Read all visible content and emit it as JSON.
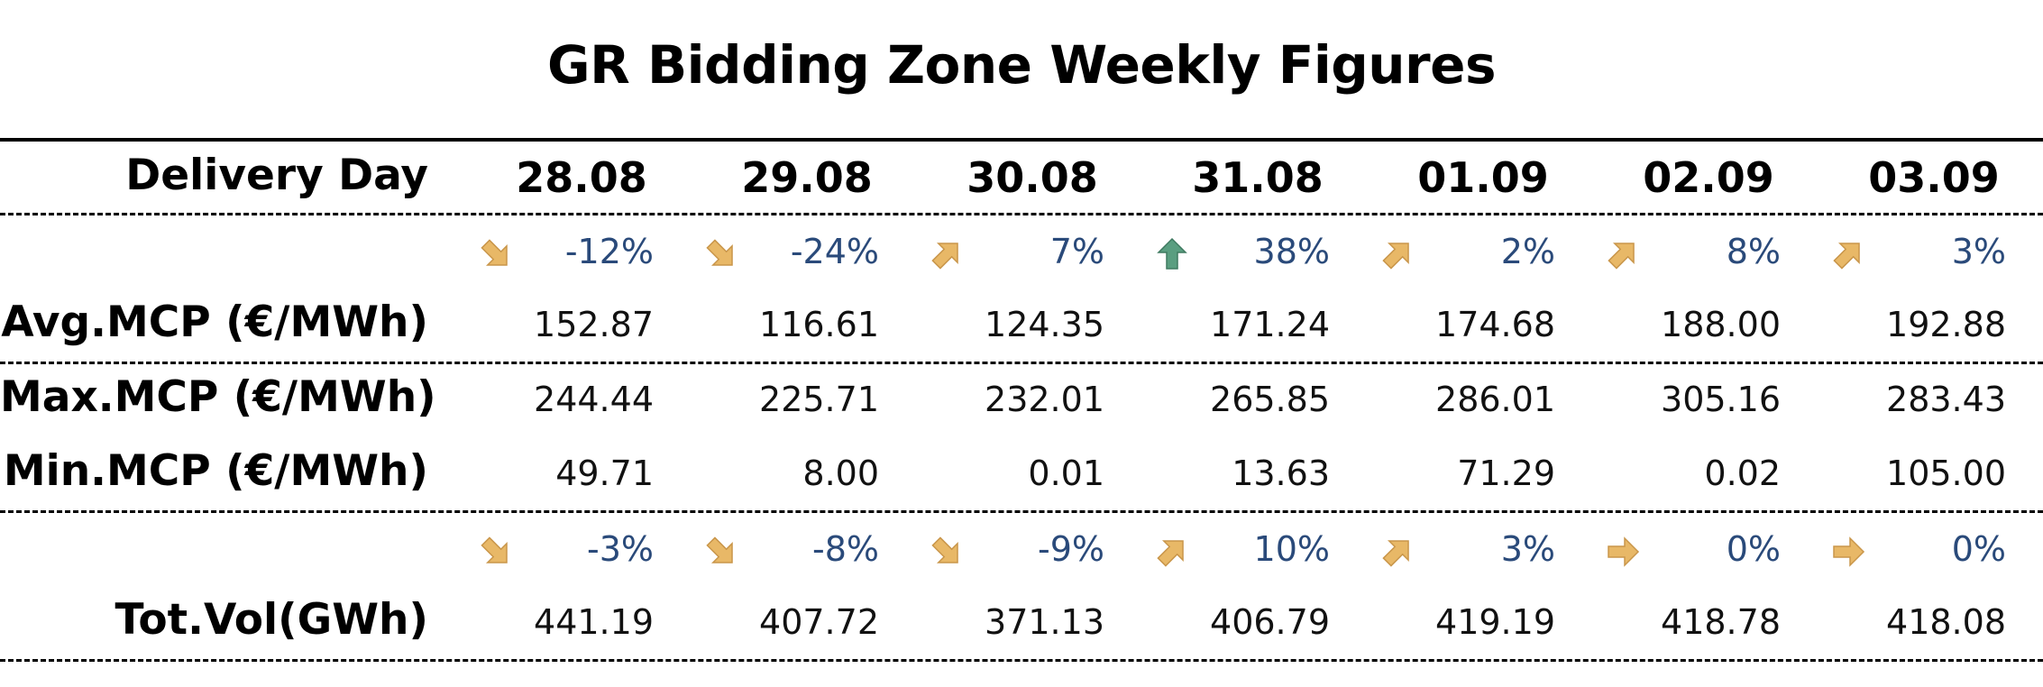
{
  "title": "GR Bidding Zone Weekly Figures",
  "header_label": "Delivery Day",
  "days": [
    "28.08",
    "29.08",
    "30.08",
    "31.08",
    "01.09",
    "02.09",
    "03.09"
  ],
  "avg_mcp": {
    "label": "Avg.MCP (€/MWh)",
    "change": [
      "-12%",
      "-24%",
      "7%",
      "38%",
      "2%",
      "8%",
      "3%"
    ],
    "trend_icons": [
      "arrow-down-right",
      "arrow-down-right",
      "arrow-up-right",
      "arrow-up",
      "arrow-up-right",
      "arrow-up-right",
      "arrow-up-right"
    ],
    "values": [
      "152.87",
      "116.61",
      "124.35",
      "171.24",
      "174.68",
      "188.00",
      "192.88"
    ]
  },
  "max_mcp": {
    "label": "Max.MCP (€/MWh)",
    "values": [
      "244.44",
      "225.71",
      "232.01",
      "265.85",
      "286.01",
      "305.16",
      "283.43"
    ]
  },
  "min_mcp": {
    "label": "Min.MCP (€/MWh)",
    "values": [
      "49.71",
      "8.00",
      "0.01",
      "13.63",
      "71.29",
      "0.02",
      "105.00"
    ]
  },
  "tot_vol": {
    "label": "Tot.Vol(GWh)",
    "change": [
      "-3%",
      "-8%",
      "-9%",
      "10%",
      "3%",
      "0%",
      "0%"
    ],
    "trend_icons": [
      "arrow-down-right",
      "arrow-down-right",
      "arrow-down-right",
      "arrow-up-right",
      "arrow-up-right",
      "arrow-right",
      "arrow-right"
    ],
    "values": [
      "441.19",
      "407.72",
      "371.13",
      "406.79",
      "419.19",
      "418.78",
      "418.08"
    ]
  },
  "colors": {
    "arrow_neutral": "#e8b867",
    "arrow_strong_up": "#5a9e80",
    "percent_text": "#2a4a7a"
  }
}
